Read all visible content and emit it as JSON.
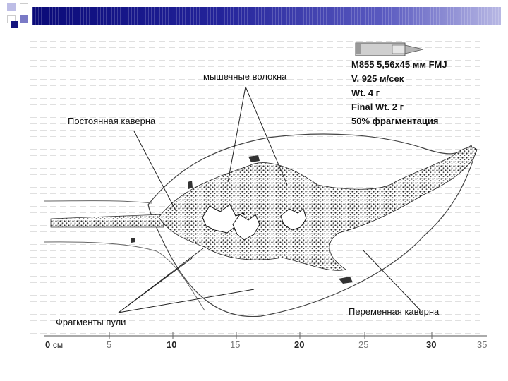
{
  "diagram": {
    "labels": {
      "muscle_fibers": "мышечные волокна",
      "permanent_cavity": "Постоянная каверна",
      "bullet_fragments": "Фрагменты пули",
      "temporary_cavity": "Переменная каверна"
    },
    "ammo": {
      "line1": "M855 5,56x45 мм FMJ",
      "line2": "V. 925 м/сек",
      "line3": "Wt. 4 г",
      "line4": "Final Wt. 2 г",
      "line5": "50% фрагментация"
    },
    "scale": {
      "unit": "см",
      "ticks": [
        "0",
        "5",
        "10",
        "15",
        "20",
        "25",
        "30",
        "35"
      ]
    }
  }
}
